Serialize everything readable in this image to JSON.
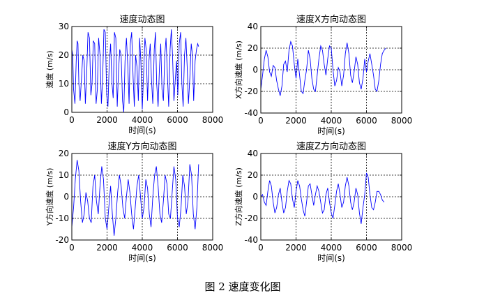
{
  "caption": "图 2  速度变化图",
  "chart_data": [
    {
      "type": "line",
      "title": "速度动态图",
      "xlabel": "时间(s)",
      "ylabel": "速度 (m/s)",
      "xlim": [
        0,
        8000
      ],
      "ylim": [
        0,
        30
      ],
      "xticks": [
        0,
        2000,
        4000,
        6000,
        8000
      ],
      "yticks": [
        0,
        10,
        20,
        30
      ],
      "grid": "dashed",
      "color": "#0000ff",
      "series": [
        {
          "x": [
            0,
            50,
            100,
            180,
            250,
            300,
            350,
            400,
            470,
            550,
            620,
            700,
            770,
            850,
            920,
            1000,
            1080,
            1150,
            1220,
            1300,
            1380,
            1450,
            1520,
            1600,
            1680,
            1750,
            1820,
            1900,
            1980,
            2050,
            2120,
            2200,
            2280,
            2350,
            2420,
            2500,
            2580,
            2650,
            2720,
            2800,
            2880,
            2950,
            3020,
            3100,
            3180,
            3250,
            3320,
            3400,
            3480,
            3550,
            3620,
            3700,
            3780,
            3850,
            3920,
            4000,
            4080,
            4150,
            4220,
            4300,
            4380,
            4450,
            4520,
            4600,
            4680,
            4750,
            4820,
            4900,
            4980,
            5050,
            5120,
            5200,
            5280,
            5350,
            5420,
            5500,
            5580,
            5650,
            5720,
            5800,
            5880,
            5950,
            6020,
            6100,
            6180,
            6250,
            6320,
            6400,
            6480,
            6550,
            6620,
            6700,
            6780,
            6850,
            6920,
            7000,
            7080,
            7150,
            7200
          ],
          "y": [
            22,
            20,
            8,
            3,
            18,
            25,
            24,
            10,
            4,
            12,
            20,
            18,
            3,
            15,
            28,
            26,
            6,
            10,
            25,
            24,
            3,
            8,
            26,
            20,
            3,
            12,
            29,
            28,
            6,
            2,
            16,
            24,
            10,
            5,
            28,
            26,
            2,
            14,
            22,
            20,
            4,
            0,
            18,
            26,
            16,
            3,
            24,
            28,
            12,
            2,
            20,
            16,
            4,
            26,
            18,
            1,
            14,
            26,
            22,
            4,
            18,
            24,
            12,
            3,
            22,
            28,
            10,
            2,
            16,
            24,
            8,
            4,
            20,
            26,
            14,
            2,
            22,
            29,
            20,
            4,
            12,
            18,
            6,
            24,
            28,
            10,
            2,
            20,
            26,
            16,
            3,
            12,
            24,
            20,
            4,
            18,
            22,
            24,
            23
          ]
        }
      ]
    },
    {
      "type": "line",
      "title": "速度X方向动态图",
      "xlabel": "时间(s)",
      "ylabel": "X方向速度 (m/s)",
      "xlim": [
        0,
        8000
      ],
      "ylim": [
        -40,
        40
      ],
      "xticks": [
        0,
        2000,
        4000,
        6000,
        8000
      ],
      "yticks": [
        -40,
        -20,
        0,
        20,
        40
      ],
      "grid": "dashed",
      "color": "#0000ff",
      "series": [
        {
          "x": [
            0,
            100,
            200,
            300,
            400,
            500,
            600,
            700,
            800,
            900,
            1000,
            1100,
            1200,
            1300,
            1400,
            1500,
            1600,
            1700,
            1800,
            1900,
            2000,
            2100,
            2200,
            2300,
            2400,
            2500,
            2600,
            2700,
            2800,
            2900,
            3000,
            3100,
            3200,
            3300,
            3400,
            3500,
            3600,
            3700,
            3800,
            3900,
            4000,
            4100,
            4200,
            4300,
            4400,
            4500,
            4600,
            4700,
            4800,
            4900,
            5000,
            5100,
            5200,
            5300,
            5400,
            5500,
            5600,
            5700,
            5800,
            5900,
            6000,
            6100,
            6200,
            6300,
            6400,
            6500,
            6600,
            6700,
            6800,
            6900,
            7000,
            7100
          ],
          "y": [
            -18,
            -5,
            10,
            18,
            12,
            -2,
            -6,
            4,
            2,
            -10,
            -18,
            -24,
            -15,
            5,
            8,
            -2,
            18,
            26,
            22,
            5,
            -8,
            10,
            -5,
            -20,
            -22,
            -10,
            0,
            18,
            10,
            -8,
            -18,
            -20,
            -5,
            10,
            22,
            18,
            5,
            -5,
            10,
            22,
            20,
            0,
            -15,
            -10,
            2,
            -2,
            -15,
            -5,
            15,
            25,
            15,
            -5,
            -12,
            -2,
            12,
            5,
            -12,
            -18,
            -8,
            10,
            -2,
            8,
            15,
            5,
            -5,
            -18,
            -20,
            -10,
            5,
            15,
            18,
            20
          ]
        }
      ]
    },
    {
      "type": "line",
      "title": "速度Y方向动态图",
      "xlabel": "时间(s)",
      "ylabel": "Y方向速度 (m/s)",
      "xlim": [
        0,
        8000
      ],
      "ylim": [
        -20,
        20
      ],
      "xticks": [
        0,
        2000,
        4000,
        6000,
        8000
      ],
      "yticks": [
        -20,
        -10,
        0,
        10,
        20
      ],
      "grid": "dashed",
      "color": "#0000ff",
      "series": [
        {
          "x": [
            0,
            100,
            200,
            300,
            400,
            500,
            600,
            700,
            800,
            900,
            1000,
            1100,
            1200,
            1300,
            1400,
            1500,
            1600,
            1700,
            1800,
            1900,
            2000,
            2100,
            2200,
            2300,
            2400,
            2500,
            2600,
            2700,
            2800,
            2900,
            3000,
            3100,
            3200,
            3300,
            3400,
            3500,
            3600,
            3700,
            3800,
            3900,
            4000,
            4100,
            4200,
            4300,
            4400,
            4500,
            4600,
            4700,
            4800,
            4900,
            5000,
            5100,
            5200,
            5300,
            5400,
            5500,
            5600,
            5700,
            5800,
            5900,
            6000,
            6100,
            6200,
            6300,
            6400,
            6500,
            6600,
            6700,
            6800,
            6900,
            7000,
            7100,
            7200
          ],
          "y": [
            -14,
            -5,
            8,
            17,
            12,
            -2,
            -12,
            -8,
            2,
            -2,
            -10,
            -12,
            5,
            10,
            -2,
            -8,
            5,
            14,
            8,
            -10,
            -15,
            -5,
            5,
            -8,
            -18,
            -10,
            2,
            10,
            5,
            -5,
            -10,
            0,
            8,
            2,
            -8,
            -15,
            -5,
            5,
            10,
            0,
            -10,
            -5,
            8,
            4,
            -8,
            -14,
            0,
            10,
            14,
            5,
            -8,
            -12,
            -2,
            10,
            6,
            -8,
            -10,
            2,
            14,
            8,
            -10,
            -14,
            -5,
            10,
            5,
            -8,
            -2,
            15,
            10,
            -8,
            -15,
            -5,
            15
          ]
        }
      ]
    },
    {
      "type": "line",
      "title": "速度Z方向动态图",
      "xlabel": "时间(s)",
      "ylabel": "Z方向速度 (m/s)",
      "xlim": [
        0,
        8000
      ],
      "ylim": [
        -40,
        40
      ],
      "xticks": [
        0,
        2000,
        4000,
        6000,
        8000
      ],
      "yticks": [
        -40,
        -20,
        0,
        20,
        40
      ],
      "grid": "dashed",
      "color": "#0000ff",
      "series": [
        {
          "x": [
            0,
            100,
            200,
            300,
            400,
            500,
            600,
            700,
            800,
            900,
            1000,
            1100,
            1200,
            1300,
            1400,
            1500,
            1600,
            1700,
            1800,
            1900,
            2000,
            2100,
            2200,
            2300,
            2400,
            2500,
            2600,
            2700,
            2800,
            2900,
            3000,
            3100,
            3200,
            3300,
            3400,
            3500,
            3600,
            3700,
            3800,
            3900,
            4000,
            4100,
            4200,
            4300,
            4400,
            4500,
            4600,
            4700,
            4800,
            4900,
            5000,
            5100,
            5200,
            5300,
            5400,
            5500,
            5600,
            5700,
            5800,
            5900,
            6000,
            6100,
            6200,
            6300,
            6400,
            6500,
            6600,
            6700,
            6800,
            6900,
            7000
          ],
          "y": [
            0,
            2,
            -5,
            -8,
            5,
            15,
            10,
            -5,
            -15,
            -10,
            2,
            8,
            -5,
            -15,
            -10,
            5,
            15,
            12,
            -2,
            -10,
            5,
            15,
            10,
            -2,
            -12,
            -18,
            -5,
            10,
            12,
            2,
            -8,
            2,
            10,
            5,
            -5,
            -15,
            -12,
            2,
            8,
            -5,
            -15,
            -20,
            -8,
            5,
            12,
            2,
            -10,
            -5,
            10,
            18,
            10,
            -5,
            -12,
            -5,
            8,
            2,
            -15,
            -25,
            -10,
            2,
            22,
            18,
            2,
            -10,
            -12,
            -5,
            5,
            5,
            2,
            -3,
            -5
          ]
        }
      ]
    }
  ]
}
